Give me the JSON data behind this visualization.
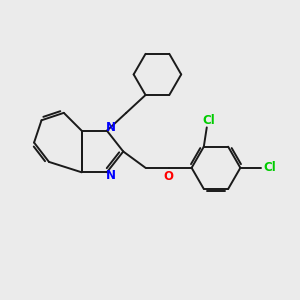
{
  "background_color": "#ebebeb",
  "bond_color": "#1a1a1a",
  "n_color": "#0000ff",
  "o_color": "#ff0000",
  "cl_color": "#00cc00",
  "bond_width": 1.4,
  "figsize": [
    3.0,
    3.0
  ],
  "dpi": 100,
  "xlim": [
    0,
    10
  ],
  "ylim": [
    0,
    10
  ]
}
